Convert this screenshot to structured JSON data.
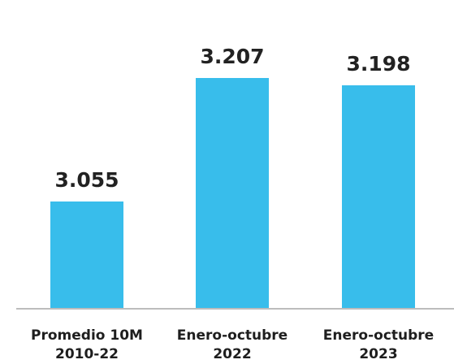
{
  "chart_data": {
    "type": "bar",
    "categories": [
      [
        "Promedio 10M",
        "2010-22"
      ],
      [
        "Enero-octubre",
        "2022"
      ],
      [
        "Enero-octubre",
        "2023"
      ]
    ],
    "values": [
      3055,
      3207,
      3198
    ],
    "value_labels": [
      "3.055",
      "3.207",
      "3.198"
    ],
    "title": "",
    "xlabel": "",
    "ylabel": "",
    "grid": false,
    "colors": {
      "bar": "#38BDEB",
      "axis": "#BDBDBD",
      "label": "#222222"
    }
  }
}
